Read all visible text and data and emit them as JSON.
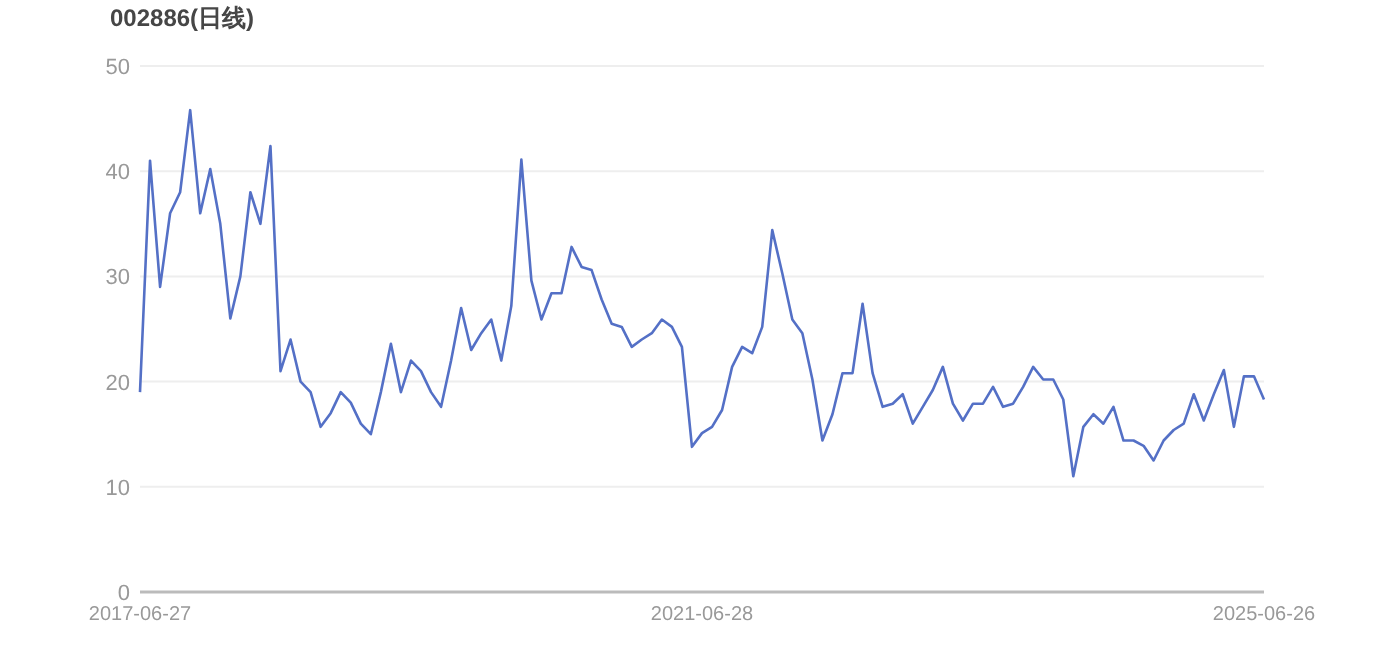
{
  "chart_data": {
    "type": "line",
    "title": "002886(日线)",
    "categories": [
      "2017-06-27",
      null,
      null,
      null,
      null,
      null,
      null,
      null,
      null,
      null,
      null,
      null,
      null,
      null,
      null,
      null,
      null,
      null,
      null,
      null,
      null,
      null,
      null,
      null,
      null,
      null,
      null,
      null,
      null,
      null,
      null,
      null,
      null,
      null,
      null,
      null,
      null,
      null,
      null,
      null,
      null,
      null,
      null,
      null,
      null,
      null,
      null,
      null,
      null,
      null,
      null,
      null,
      null,
      null,
      null,
      null,
      "2021-06-28",
      null,
      null,
      null,
      null,
      null,
      null,
      null,
      null,
      null,
      null,
      null,
      null,
      null,
      null,
      null,
      null,
      null,
      null,
      null,
      null,
      null,
      null,
      null,
      null,
      null,
      null,
      null,
      null,
      null,
      null,
      null,
      null,
      null,
      null,
      null,
      null,
      null,
      null,
      null,
      null,
      null,
      null,
      null,
      null,
      null,
      null,
      null,
      null,
      null,
      null,
      null,
      null,
      null,
      null,
      null,
      "2025-06-26"
    ],
    "values": [
      19,
      41,
      29,
      36,
      38,
      45.8,
      36,
      40.2,
      35,
      26,
      30,
      38,
      35,
      42.4,
      21,
      24,
      20,
      19,
      15.7,
      17,
      19,
      18,
      16,
      15,
      19,
      23.6,
      19,
      22,
      21,
      19,
      17.6,
      22,
      27,
      23,
      24.6,
      25.9,
      22,
      27.2,
      41.1,
      29.6,
      25.9,
      28.4,
      28.4,
      32.8,
      30.9,
      30.6,
      27.8,
      25.5,
      25.2,
      23.3,
      24,
      24.6,
      25.9,
      25.2,
      23.3,
      13.8,
      15.1,
      15.7,
      17.3,
      21.4,
      23.3,
      22.7,
      25.2,
      34.4,
      30.3,
      25.9,
      24.6,
      20.2,
      14.4,
      16.9,
      20.8,
      20.8,
      27.4,
      20.8,
      17.6,
      17.9,
      18.8,
      16,
      17.6,
      19.2,
      21.4,
      17.9,
      16.3,
      17.9,
      17.9,
      19.5,
      17.6,
      17.9,
      19.5,
      21.4,
      20.2,
      20.2,
      18.3,
      11,
      15.7,
      16.9,
      16,
      17.6,
      14.4,
      14.4,
      13.9,
      12.5,
      14.4,
      15.4,
      16,
      18.8,
      16.3,
      18.8,
      21.1,
      15.7,
      20.5,
      20.5,
      18.3
    ],
    "color": "#5470c6",
    "ylim": [
      0,
      50
    ],
    "yticks": [
      0,
      10,
      20,
      30,
      40,
      50
    ],
    "grid": "y",
    "marker": "none"
  }
}
